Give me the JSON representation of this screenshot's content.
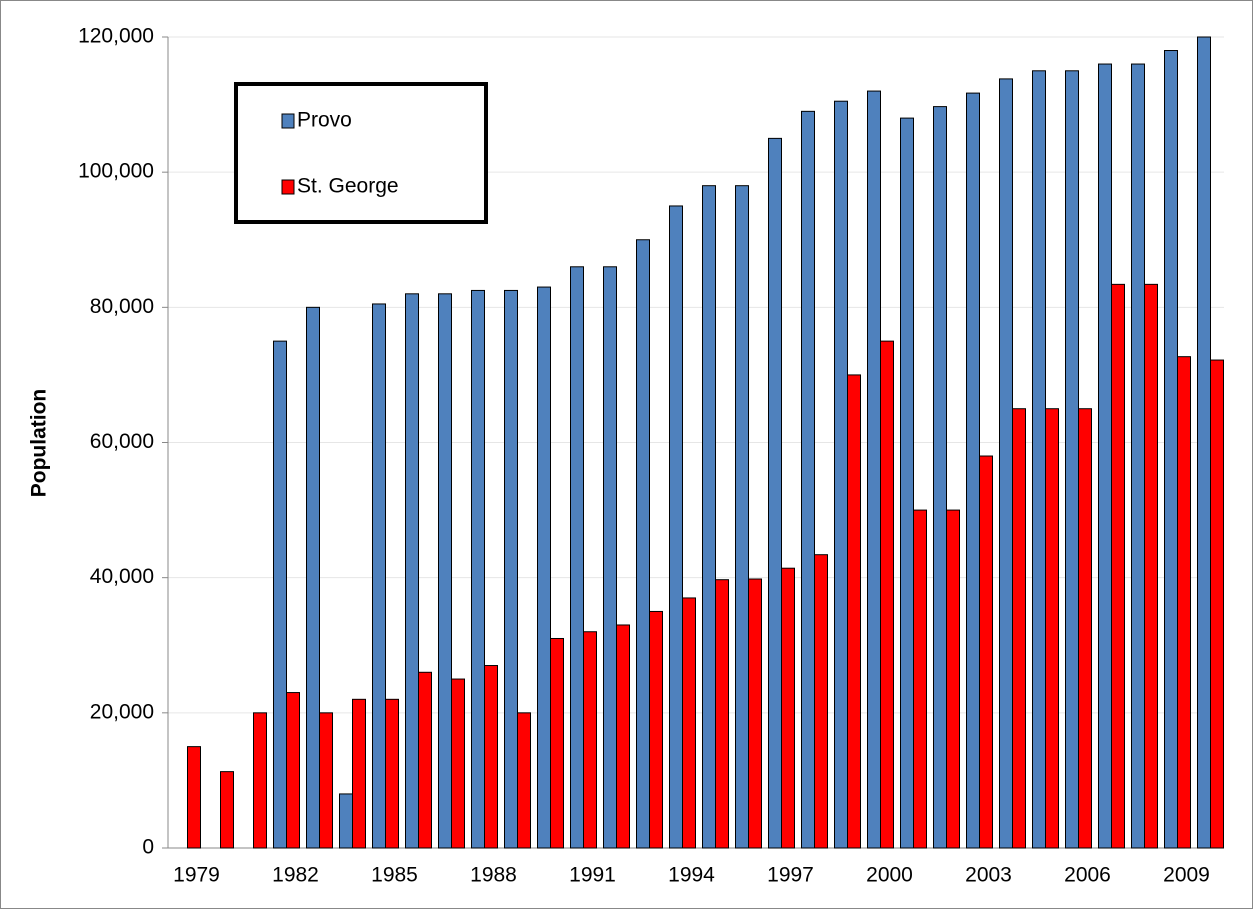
{
  "chart_data": {
    "type": "bar",
    "y_label": "Population",
    "categories": [
      "1979",
      null,
      null,
      "1982",
      null,
      null,
      "1985",
      null,
      null,
      "1988",
      null,
      null,
      "1991",
      null,
      null,
      "1994",
      null,
      null,
      "1997",
      null,
      null,
      "2000",
      null,
      null,
      "2003",
      null,
      null,
      "2006",
      null,
      null,
      "2009",
      null
    ],
    "series": [
      {
        "name": "Provo",
        "color": "#4f81bd",
        "values": [
          null,
          null,
          null,
          75000,
          80000,
          8000,
          80500,
          82000,
          82000,
          82500,
          82500,
          83000,
          86000,
          86000,
          90000,
          95000,
          98000,
          98000,
          105000,
          109000,
          110500,
          112000,
          108000,
          109700,
          111700,
          113800,
          115000,
          115000,
          116000,
          116000,
          118000,
          120000
        ]
      },
      {
        "name": "St. George",
        "color": "#ff0000",
        "values": [
          15000,
          11300,
          20000,
          23000,
          20000,
          22000,
          22000,
          26000,
          25000,
          27000,
          20000,
          31000,
          32000,
          33000,
          35000,
          37000,
          39700,
          39800,
          41400,
          43400,
          70000,
          75000,
          50000,
          50000,
          58000,
          65000,
          65000,
          65000,
          83400,
          83400,
          72700,
          72200
        ]
      }
    ],
    "ylim": [
      0,
      120000
    ],
    "yticks": [
      0,
      {
        "value": 20000,
        "label": "20,000"
      },
      {
        "value": 40000,
        "label": "40,000"
      },
      {
        "value": 60000,
        "label": "60,000"
      },
      {
        "value": 80000,
        "label": "80,000"
      },
      {
        "value": 100000,
        "label": "100,000"
      },
      {
        "value": 120000,
        "label": "120,000"
      }
    ],
    "grid": true
  }
}
